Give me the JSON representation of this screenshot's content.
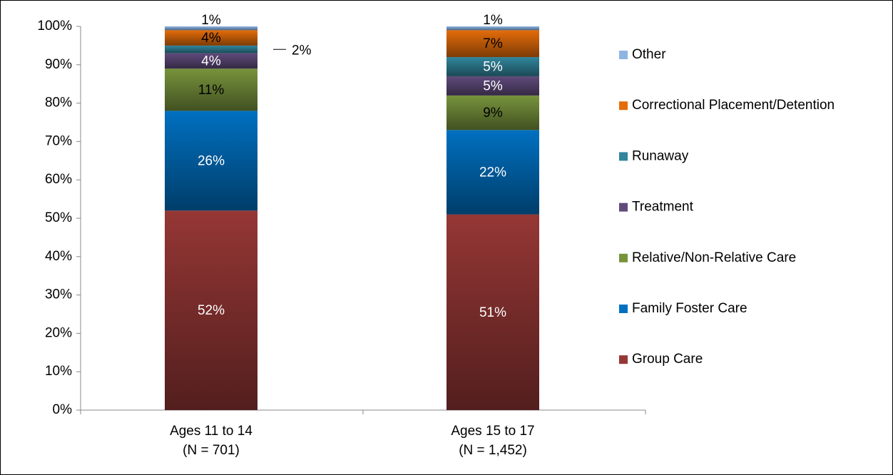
{
  "chart_data": {
    "type": "stacked_bar",
    "categories": [
      [
        "Ages 11 to 14",
        "(N = 701)"
      ],
      [
        "Ages 15 to 17",
        "(N = 1,452)"
      ]
    ],
    "series": [
      {
        "name": "Group Care",
        "color": "#953735",
        "label_color": "#ffffff",
        "values": [
          52,
          51
        ],
        "value_labels": [
          "52%",
          "51%"
        ]
      },
      {
        "name": "Family Foster Care",
        "color": "#0070c0",
        "label_color": "#ffffff",
        "values": [
          26,
          22
        ],
        "value_labels": [
          "26%",
          "22%"
        ]
      },
      {
        "name": "Relative/Non-Relative Care",
        "color": "#77933c",
        "label_color": "#000000",
        "values": [
          11,
          9
        ],
        "value_labels": [
          "11%",
          "9%"
        ]
      },
      {
        "name": "Treatment",
        "color": "#604a7b",
        "label_color": "#ffffff",
        "values": [
          4,
          5
        ],
        "value_labels": [
          "4%",
          "5%"
        ]
      },
      {
        "name": "Runaway",
        "color": "#31859c",
        "label_color": "#ffffff",
        "values": [
          2,
          5
        ],
        "value_labels": [
          "2%",
          "5%"
        ]
      },
      {
        "name": "Correctional Placement/Detention",
        "color": "#e46c0a",
        "label_color": "#000000",
        "values": [
          4,
          7
        ],
        "value_labels": [
          "4%",
          "7%"
        ]
      },
      {
        "name": "Other",
        "color": "#8eb4e3",
        "label_color": "#000000",
        "values": [
          1,
          1
        ],
        "value_labels": [
          "1%",
          "1%"
        ]
      }
    ],
    "ylim": [
      0,
      100
    ],
    "yticks": [
      {
        "value": 0,
        "label": "0%"
      },
      {
        "value": 10,
        "label": "10%"
      },
      {
        "value": 20,
        "label": "20%"
      },
      {
        "value": 30,
        "label": "30%"
      },
      {
        "value": 40,
        "label": "40%"
      },
      {
        "value": 50,
        "label": "50%"
      },
      {
        "value": 60,
        "label": "60%"
      },
      {
        "value": 70,
        "label": "70%"
      },
      {
        "value": 80,
        "label": "80%"
      },
      {
        "value": 90,
        "label": "90%"
      },
      {
        "value": 100,
        "label": "100%"
      }
    ],
    "legend": "right"
  }
}
